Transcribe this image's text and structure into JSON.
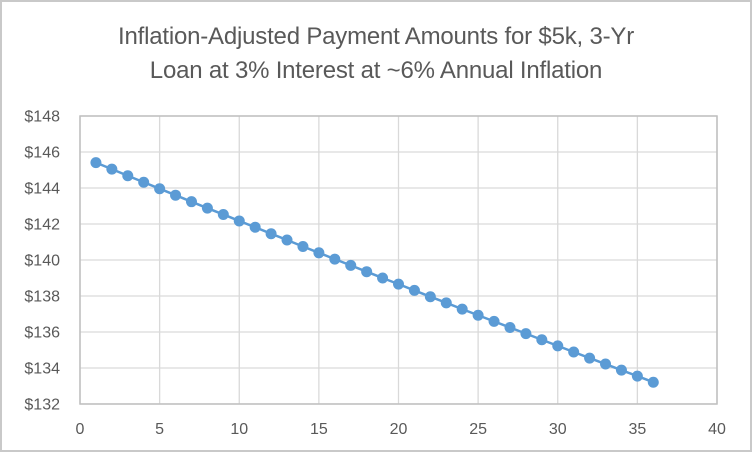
{
  "chart_data": {
    "type": "scatter",
    "title": "Inflation-Adjusted Payment Amounts for $5k, 3-Yr Loan at 3% Interest at ~6% Annual Inflation",
    "title_lines": [
      "Inflation-Adjusted Payment Amounts for $5k, 3-Yr",
      "Loan at 3% Interest at ~6% Annual Inflation"
    ],
    "xlabel": "",
    "ylabel": "",
    "xlim": [
      0,
      40
    ],
    "ylim": [
      132,
      148
    ],
    "grid": true,
    "legend": false,
    "x": [
      1,
      2,
      3,
      4,
      5,
      6,
      7,
      8,
      9,
      10,
      11,
      12,
      13,
      14,
      15,
      16,
      17,
      18,
      19,
      20,
      21,
      22,
      23,
      24,
      25,
      26,
      27,
      28,
      29,
      30,
      31,
      32,
      33,
      34,
      35,
      36
    ],
    "y": [
      145.41,
      145.05,
      144.68,
      144.32,
      143.96,
      143.6,
      143.24,
      142.88,
      142.53,
      142.17,
      141.82,
      141.46,
      141.11,
      140.75,
      140.4,
      140.05,
      139.7,
      139.35,
      139.0,
      138.66,
      138.31,
      137.96,
      137.62,
      137.27,
      136.93,
      136.59,
      136.25,
      135.91,
      135.57,
      135.23,
      134.89,
      134.55,
      134.22,
      133.88,
      133.55,
      133.21
    ],
    "x_ticks": [
      0,
      5,
      10,
      15,
      20,
      25,
      30,
      35,
      40
    ],
    "x_tick_labels": [
      "0",
      "5",
      "10",
      "15",
      "20",
      "25",
      "30",
      "35",
      "40"
    ],
    "y_ticks": [
      132,
      134,
      136,
      138,
      140,
      142,
      144,
      146,
      148
    ],
    "y_tick_labels": [
      "$132",
      "$134",
      "$136",
      "$138",
      "$140",
      "$142",
      "$144",
      "$146",
      "$148"
    ],
    "colors": {
      "series": "#5b9bd5",
      "gridline": "#d9d9d9",
      "axis_border": "#bfbfbf",
      "tick_label": "#595959",
      "title": "#595959"
    }
  }
}
